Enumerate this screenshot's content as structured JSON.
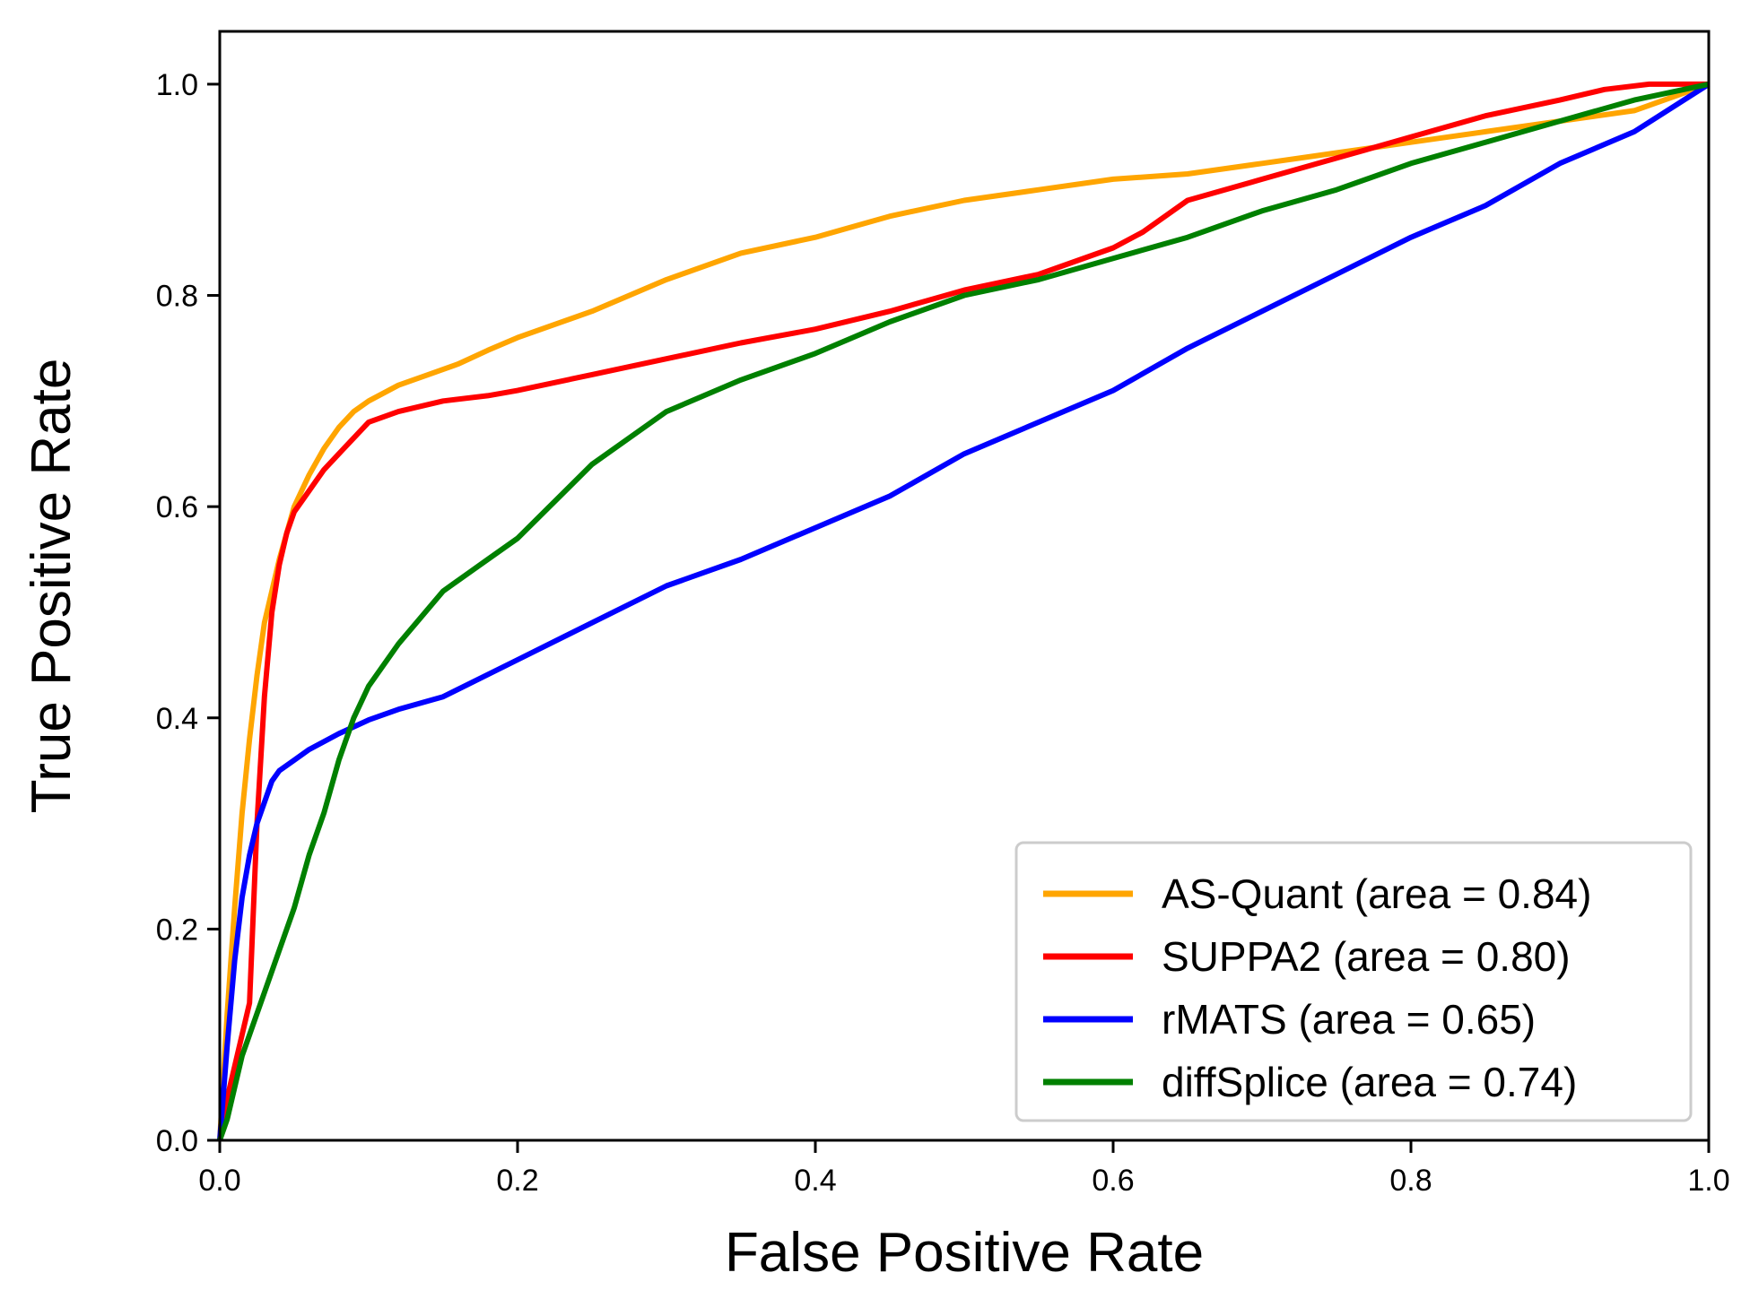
{
  "chart_data": {
    "type": "line",
    "title": "",
    "xlabel": "False Positive Rate",
    "ylabel": "True Positive Rate",
    "xlim": [
      0.0,
      1.0
    ],
    "ylim": [
      0.0,
      1.05
    ],
    "xticks": [
      "0.0",
      "0.2",
      "0.4",
      "0.6",
      "0.8",
      "1.0"
    ],
    "yticks": [
      "0.0",
      "0.2",
      "0.4",
      "0.6",
      "0.8",
      "1.0"
    ],
    "grid": false,
    "legend_position": "lower-right",
    "series": [
      {
        "name": "AS-Quant (area = 0.84)",
        "color": "#FFA500",
        "x": [
          0,
          0.005,
          0.01,
          0.015,
          0.02,
          0.025,
          0.03,
          0.035,
          0.04,
          0.045,
          0.05,
          0.06,
          0.07,
          0.08,
          0.09,
          0.1,
          0.12,
          0.14,
          0.16,
          0.18,
          0.2,
          0.25,
          0.3,
          0.35,
          0.4,
          0.45,
          0.5,
          0.55,
          0.6,
          0.65,
          0.7,
          0.75,
          0.8,
          0.85,
          0.9,
          0.95,
          1.0
        ],
        "y": [
          0,
          0.12,
          0.22,
          0.31,
          0.38,
          0.44,
          0.49,
          0.52,
          0.55,
          0.575,
          0.6,
          0.63,
          0.655,
          0.675,
          0.69,
          0.7,
          0.715,
          0.725,
          0.735,
          0.748,
          0.76,
          0.785,
          0.815,
          0.84,
          0.855,
          0.875,
          0.89,
          0.9,
          0.91,
          0.915,
          0.925,
          0.935,
          0.945,
          0.955,
          0.965,
          0.975,
          1.0
        ]
      },
      {
        "name": "SUPPA2 (area = 0.80)",
        "color": "#FF0000",
        "x": [
          0,
          0.005,
          0.01,
          0.015,
          0.02,
          0.025,
          0.03,
          0.035,
          0.04,
          0.045,
          0.05,
          0.06,
          0.07,
          0.08,
          0.09,
          0.1,
          0.12,
          0.15,
          0.18,
          0.2,
          0.25,
          0.3,
          0.35,
          0.4,
          0.45,
          0.5,
          0.55,
          0.6,
          0.62,
          0.65,
          0.7,
          0.75,
          0.8,
          0.85,
          0.9,
          0.93,
          0.96,
          1.0
        ],
        "y": [
          0,
          0.04,
          0.07,
          0.1,
          0.13,
          0.3,
          0.42,
          0.5,
          0.545,
          0.575,
          0.595,
          0.615,
          0.635,
          0.65,
          0.665,
          0.68,
          0.69,
          0.7,
          0.705,
          0.71,
          0.725,
          0.74,
          0.755,
          0.768,
          0.785,
          0.805,
          0.82,
          0.845,
          0.86,
          0.89,
          0.91,
          0.93,
          0.95,
          0.97,
          0.985,
          0.995,
          1.0,
          1.0
        ]
      },
      {
        "name": "rMATS (area = 0.65)",
        "color": "#0000FF",
        "x": [
          0,
          0.005,
          0.01,
          0.015,
          0.02,
          0.025,
          0.03,
          0.035,
          0.04,
          0.05,
          0.06,
          0.08,
          0.1,
          0.12,
          0.15,
          0.2,
          0.25,
          0.3,
          0.35,
          0.4,
          0.45,
          0.5,
          0.55,
          0.6,
          0.65,
          0.7,
          0.75,
          0.8,
          0.85,
          0.9,
          0.95,
          1.0
        ],
        "y": [
          0,
          0.09,
          0.17,
          0.23,
          0.27,
          0.3,
          0.32,
          0.34,
          0.35,
          0.36,
          0.37,
          0.385,
          0.398,
          0.408,
          0.42,
          0.455,
          0.49,
          0.525,
          0.55,
          0.58,
          0.61,
          0.65,
          0.68,
          0.71,
          0.75,
          0.785,
          0.82,
          0.855,
          0.885,
          0.925,
          0.955,
          1.0
        ]
      },
      {
        "name": "diffSplice (area = 0.74)",
        "color": "#008000",
        "x": [
          0,
          0.005,
          0.01,
          0.015,
          0.02,
          0.03,
          0.04,
          0.05,
          0.06,
          0.07,
          0.08,
          0.09,
          0.1,
          0.12,
          0.15,
          0.18,
          0.2,
          0.25,
          0.3,
          0.35,
          0.4,
          0.45,
          0.5,
          0.55,
          0.6,
          0.65,
          0.7,
          0.75,
          0.8,
          0.85,
          0.9,
          0.95,
          1.0
        ],
        "y": [
          0,
          0.02,
          0.05,
          0.08,
          0.1,
          0.14,
          0.18,
          0.22,
          0.27,
          0.31,
          0.36,
          0.4,
          0.43,
          0.47,
          0.52,
          0.55,
          0.57,
          0.64,
          0.69,
          0.72,
          0.745,
          0.775,
          0.8,
          0.815,
          0.835,
          0.855,
          0.88,
          0.9,
          0.925,
          0.945,
          0.965,
          0.985,
          1.0
        ]
      }
    ]
  }
}
